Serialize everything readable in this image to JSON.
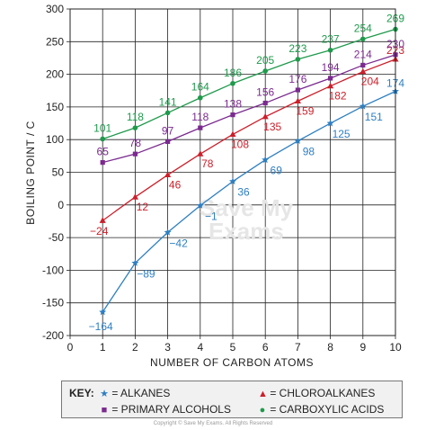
{
  "chart_data": {
    "type": "line",
    "xlabel": "NUMBER OF CARBON ATOMS",
    "ylabel": "BOILING POINT / C",
    "xlim": [
      0,
      10
    ],
    "ylim": [
      -200,
      300
    ],
    "x_ticks": [
      "0",
      "1",
      "2",
      "3",
      "4",
      "5",
      "6",
      "7",
      "8",
      "9",
      "10"
    ],
    "y_ticks": [
      "300",
      "250",
      "200",
      "150",
      "100",
      "50",
      "0",
      "-50",
      "-100",
      "-150",
      "-200"
    ],
    "grid": true,
    "x": [
      1,
      2,
      3,
      4,
      5,
      6,
      7,
      8,
      9,
      10
    ],
    "series": [
      {
        "name": "ALKANES",
        "color": "#2e7fc2",
        "marker": "star",
        "values": [
          -164,
          -89,
          -42,
          -1,
          36,
          69,
          98,
          125,
          151,
          174
        ],
        "labels": [
          "−164",
          "−89",
          "−42",
          "−1",
          "36",
          "69",
          "98",
          "125",
          "151",
          "174"
        ]
      },
      {
        "name": "CHLOROALKANES",
        "color": "#cc1f2a",
        "marker": "triangle",
        "values": [
          -24,
          12,
          46,
          78,
          108,
          135,
          159,
          182,
          204,
          223
        ],
        "labels": [
          "−24",
          "12",
          "46",
          "78",
          "108",
          "135",
          "159",
          "182",
          "204",
          "223"
        ]
      },
      {
        "name": "PRIMARY ALCOHOLS",
        "color": "#7b2a8f",
        "marker": "square",
        "values": [
          65,
          78,
          97,
          118,
          138,
          156,
          176,
          194,
          214,
          230
        ],
        "labels": [
          "65",
          "78",
          "97",
          "118",
          "138",
          "156",
          "176",
          "194",
          "214",
          "230"
        ]
      },
      {
        "name": "CARBOXYLIC ACIDS",
        "color": "#1f9a4c",
        "marker": "circle",
        "values": [
          101,
          118,
          141,
          164,
          186,
          205,
          223,
          237,
          254,
          269
        ],
        "labels": [
          "101",
          "118",
          "141",
          "164",
          "186",
          "205",
          "223",
          "237",
          "254",
          "269"
        ]
      }
    ]
  },
  "key": {
    "title": "KEY:",
    "alkanes": "= ALKANES",
    "chloroalkanes": "= CHLOROALKANES",
    "alcohols": "= PRIMARY ALCOHOLS",
    "acids": "= CARBOXYLIC ACIDS"
  },
  "watermark": {
    "line1": "Save My",
    "line2": "Exams"
  },
  "footer": "Copyright © Save My Exams. All Rights Reserved"
}
